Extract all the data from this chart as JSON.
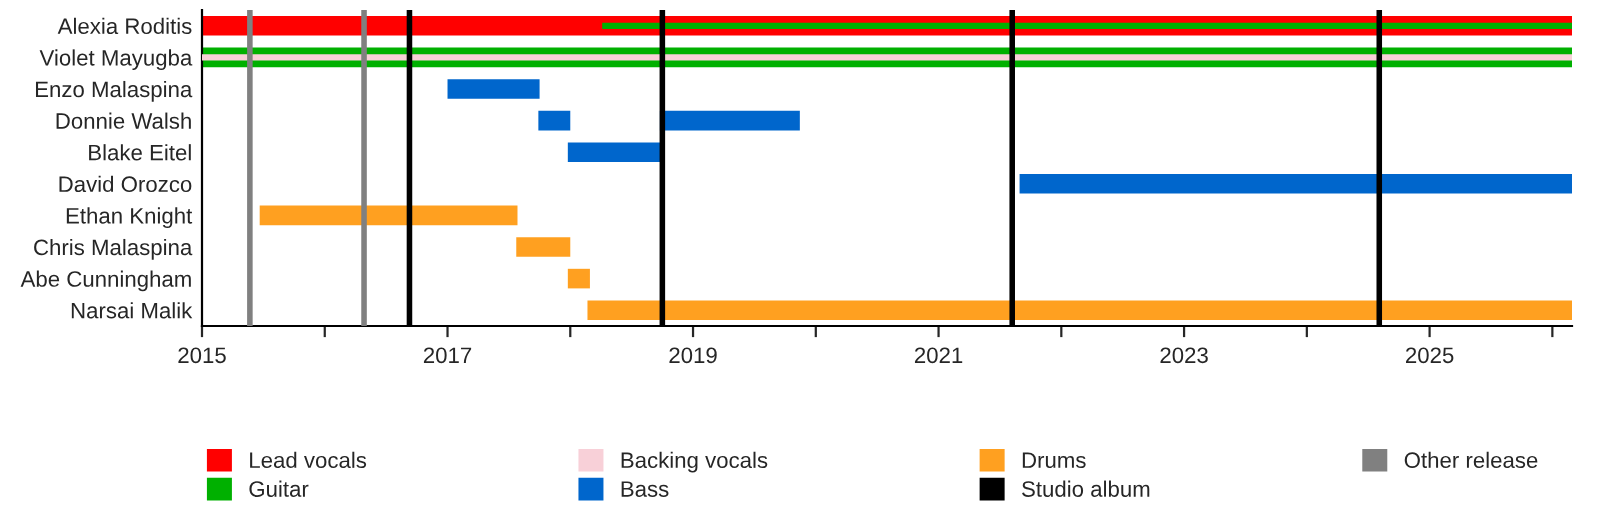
{
  "chart_data": {
    "type": "bar",
    "orientation": "horizontal",
    "categories": [
      "Alexia Roditis",
      "Violet Mayugba",
      "Enzo Malaspina",
      "Donnie Walsh",
      "Blake Eitel",
      "David Orozco",
      "Ethan Knight",
      "Chris Malaspina",
      "Abe Cunningham",
      "Narsai Malik"
    ],
    "series": [
      {
        "name": "Lead vocals",
        "color": "#ff0000",
        "base": [
          2015,
          null,
          null,
          null,
          null,
          null,
          null,
          null,
          null,
          null
        ],
        "values": [
          11.16,
          null,
          null,
          null,
          null,
          null,
          null,
          null,
          null,
          null
        ]
      },
      {
        "name": "Guitar",
        "color": "#00b000",
        "base": [
          2018.26,
          2015,
          null,
          null,
          null,
          null,
          null,
          null,
          null,
          null
        ],
        "values": [
          7.9,
          11.16,
          null,
          null,
          null,
          null,
          null,
          null,
          null,
          null
        ]
      },
      {
        "name": "Backing vocals",
        "color": "#f8d0d8",
        "base": [
          null,
          2015,
          null,
          null,
          null,
          null,
          null,
          null,
          null,
          null
        ],
        "values": [
          null,
          11.16,
          null,
          null,
          null,
          null,
          null,
          null,
          null,
          null
        ]
      },
      {
        "name": "Bass",
        "color": "#0066cc",
        "base": [
          null,
          null,
          2017.0,
          2017.74,
          2017.98,
          2021.66,
          null,
          null,
          null,
          null
        ],
        "values": [
          null,
          null,
          0.75,
          0.26,
          0.77,
          4.5,
          null,
          null,
          null,
          null
        ]
      },
      {
        "color": "#0066cc",
        "base": [
          null,
          null,
          null,
          2018.73,
          null,
          null,
          null,
          null,
          null,
          null
        ],
        "values": [
          null,
          null,
          null,
          1.14,
          null,
          null,
          null,
          null,
          null,
          null
        ]
      },
      {
        "name": "Drums",
        "color": "#ffa020",
        "base": [
          null,
          null,
          null,
          null,
          null,
          null,
          2015.47,
          2017.56,
          2017.98,
          2018.14
        ],
        "values": [
          null,
          null,
          null,
          null,
          null,
          null,
          2.1,
          0.44,
          0.18,
          8.02
        ]
      }
    ],
    "ref_lines": [
      {
        "axis": "x",
        "value": 2016.69,
        "label": "Studio album",
        "color": "#000000"
      },
      {
        "axis": "x",
        "value": 2018.75,
        "color": "#000000"
      },
      {
        "axis": "x",
        "value": 2021.6,
        "color": "#000000"
      },
      {
        "axis": "x",
        "value": 2024.59,
        "color": "#000000"
      },
      {
        "axis": "x",
        "value": 2015.39,
        "label": "Other release",
        "color": "#808080"
      },
      {
        "axis": "x",
        "value": 2016.32,
        "color": "#808080"
      }
    ],
    "xlim": [
      2015,
      2026.16
    ],
    "xticks": [
      2015,
      {
        "value": 2016,
        "label": null
      },
      2017,
      {
        "value": 2018,
        "label": null
      },
      2019,
      {
        "value": 2020,
        "label": null
      },
      2021,
      {
        "value": 2022,
        "label": null
      },
      2023,
      {
        "value": 2024,
        "label": null
      },
      2025,
      {
        "value": 2026,
        "label": null
      }
    ],
    "grid": false,
    "legend": "bottom"
  }
}
